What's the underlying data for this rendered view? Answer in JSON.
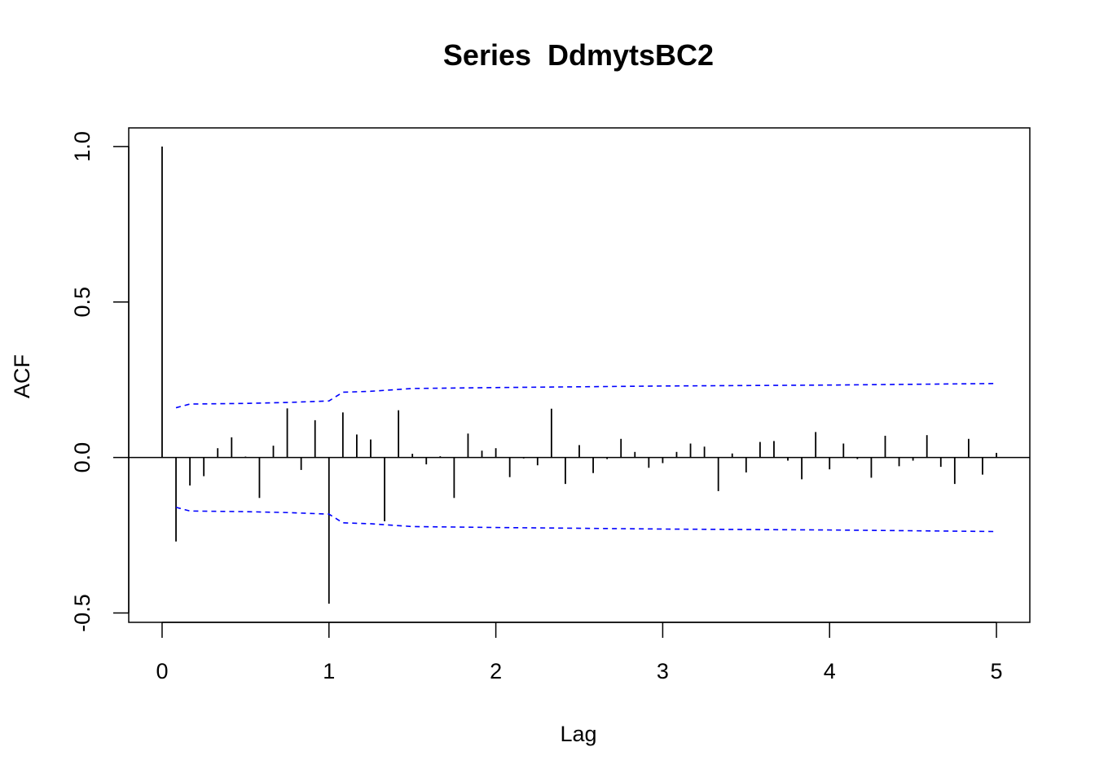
{
  "chart_data": {
    "type": "acf",
    "title": "Series  DdmytsBC2",
    "xlabel": "Lag",
    "ylabel": "ACF",
    "xlim": [
      -0.2,
      5.2
    ],
    "ylim": [
      -0.53,
      1.06
    ],
    "x_ticks": [
      0,
      1,
      2,
      3,
      4,
      5
    ],
    "x_tick_labels": [
      "0",
      "1",
      "2",
      "3",
      "4",
      "5"
    ],
    "y_ticks": [
      -0.5,
      0.0,
      0.5,
      1.0
    ],
    "y_tick_labels": [
      "-0.5",
      "0.0",
      "0.5",
      "1.0"
    ],
    "lag_step": 0.0833333,
    "acf_values": [
      1.0,
      -0.27,
      -0.09,
      -0.06,
      0.03,
      0.065,
      0.003,
      -0.13,
      0.038,
      0.158,
      -0.04,
      0.12,
      -0.47,
      0.145,
      0.074,
      0.058,
      -0.205,
      0.152,
      0.012,
      -0.022,
      0.004,
      -0.13,
      0.077,
      0.022,
      0.03,
      -0.063,
      -0.003,
      -0.025,
      0.157,
      -0.085,
      0.04,
      -0.05,
      -0.005,
      0.06,
      0.018,
      -0.033,
      -0.018,
      0.018,
      0.045,
      0.035,
      -0.108,
      0.013,
      -0.048,
      0.05,
      0.053,
      -0.01,
      -0.07,
      0.082,
      -0.038,
      0.045,
      -0.005,
      -0.065,
      0.07,
      -0.028,
      -0.01,
      0.072,
      -0.03,
      -0.085,
      0.06,
      -0.055,
      0.015
    ],
    "confidence_band": {
      "color": "#0000ff",
      "lags": [
        0.0833,
        0.1667,
        0.5,
        0.75,
        1.0,
        1.0833,
        1.25,
        1.5,
        2.0,
        3.0,
        4.0,
        5.0
      ],
      "upper": [
        0.16,
        0.172,
        0.174,
        0.177,
        0.182,
        0.21,
        0.213,
        0.222,
        0.225,
        0.23,
        0.233,
        0.238
      ],
      "lower": [
        -0.16,
        -0.172,
        -0.174,
        -0.177,
        -0.182,
        -0.21,
        -0.213,
        -0.222,
        -0.225,
        -0.23,
        -0.233,
        -0.238
      ]
    }
  }
}
